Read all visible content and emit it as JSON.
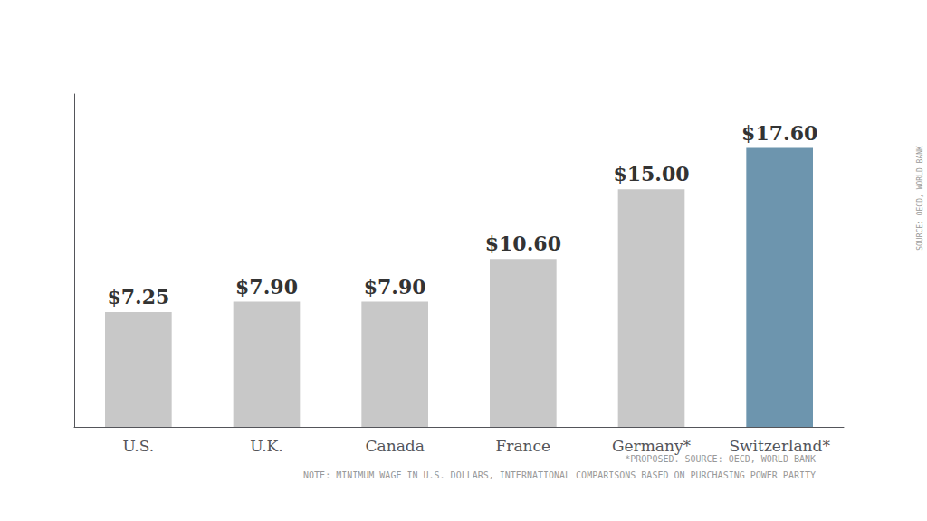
{
  "chart_data": {
    "type": "bar",
    "categories": [
      "U.S.",
      "U.K.",
      "Canada",
      "France",
      "Germany*",
      "Switzerland*"
    ],
    "values": [
      7.25,
      7.9,
      7.9,
      10.6,
      15.0,
      17.6
    ],
    "value_labels": [
      "$7.25",
      "$7.90",
      "$7.90",
      "$10.60",
      "$15.00",
      "$17.60"
    ],
    "colors": [
      "#c8c8c8",
      "#c8c8c8",
      "#c8c8c8",
      "#c8c8c8",
      "#c8c8c8",
      "#6d95ae"
    ],
    "ylim": [
      0,
      21
    ],
    "grid": false,
    "data_labels": true,
    "tick_labels": "x",
    "notes": [
      "*PROPOSED. SOURCE: OECD, WORLD BANK",
      "NOTE: MINIMUM WAGE IN U.S. DOLLARS, INTERNATIONAL COMPARISONS BASED ON PURCHASING POWER PARITY"
    ],
    "side_label": "SOURCE: OECD, WORLD BANK"
  }
}
